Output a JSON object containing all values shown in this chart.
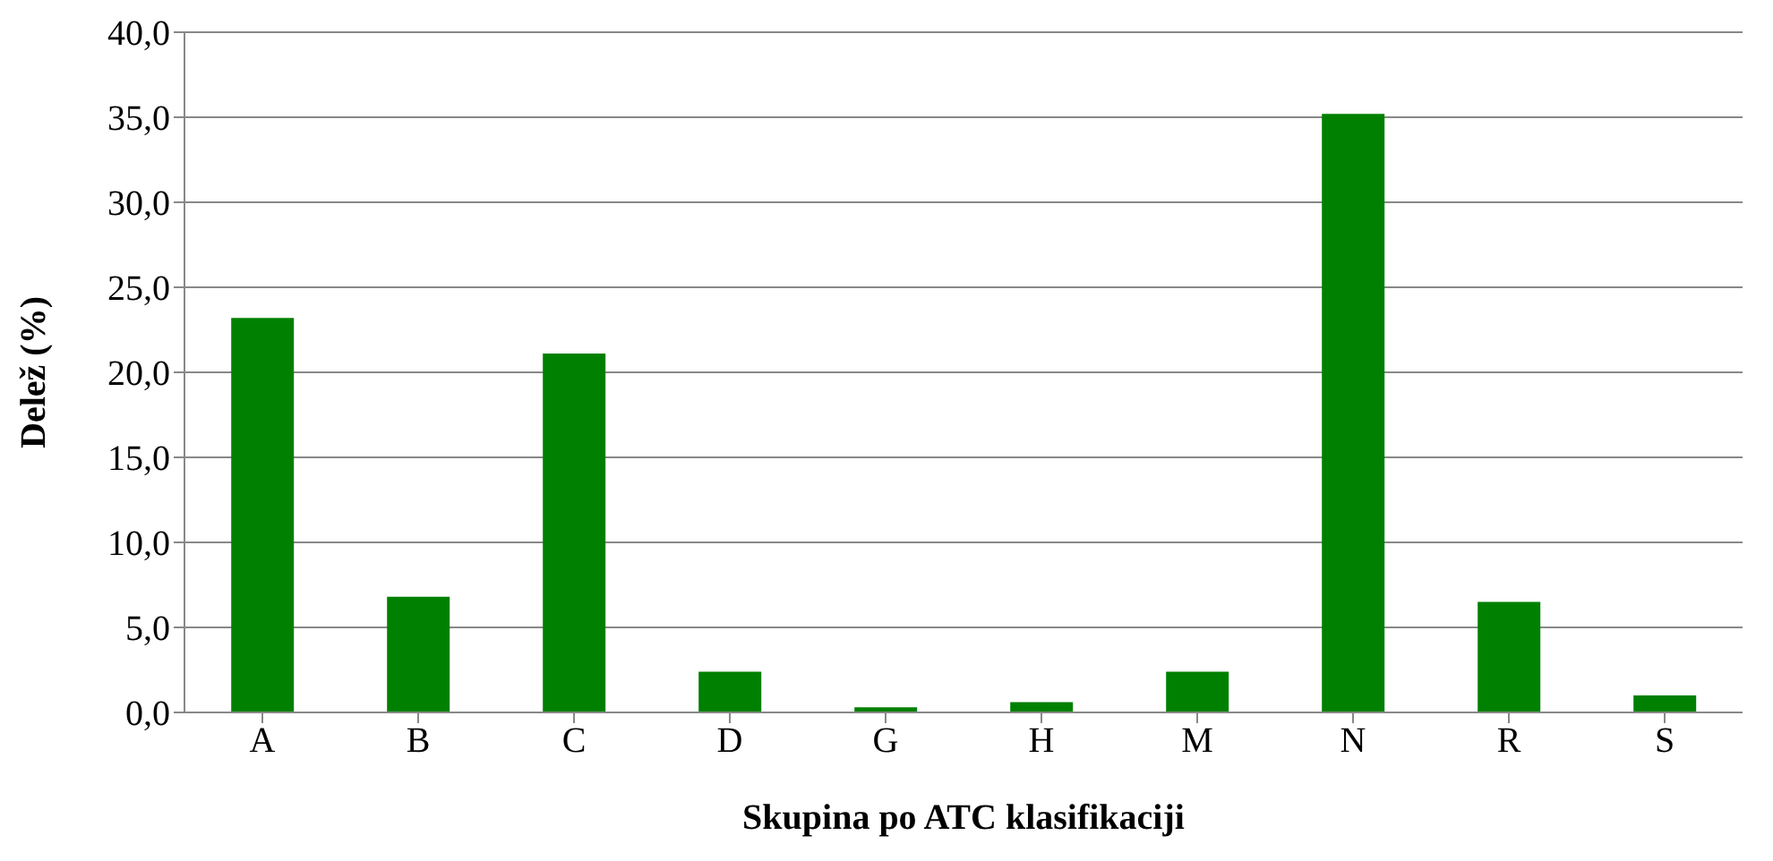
{
  "chart_data": {
    "type": "bar",
    "xlabel": "Skupina po ATC klasifikaciji",
    "ylabel": "Delež (%)",
    "categories": [
      "A",
      "B",
      "C",
      "D",
      "G",
      "H",
      "M",
      "N",
      "R",
      "S"
    ],
    "values": [
      23.2,
      6.8,
      21.1,
      2.4,
      0.3,
      0.6,
      2.4,
      35.2,
      6.5,
      1.0
    ],
    "color": "#008000",
    "ylim": [
      0,
      40
    ],
    "yticks": [
      {
        "value": 0,
        "label": "0,0"
      },
      {
        "value": 5,
        "label": "5,0"
      },
      {
        "value": 10,
        "label": "10,0"
      },
      {
        "value": 15,
        "label": "15,0"
      },
      {
        "value": 20,
        "label": "20,0"
      },
      {
        "value": 25,
        "label": "25,0"
      },
      {
        "value": 30,
        "label": "30,0"
      },
      {
        "value": 35,
        "label": "35,0"
      },
      {
        "value": 40,
        "label": "40,0"
      }
    ],
    "grid": "y",
    "legend": false
  }
}
